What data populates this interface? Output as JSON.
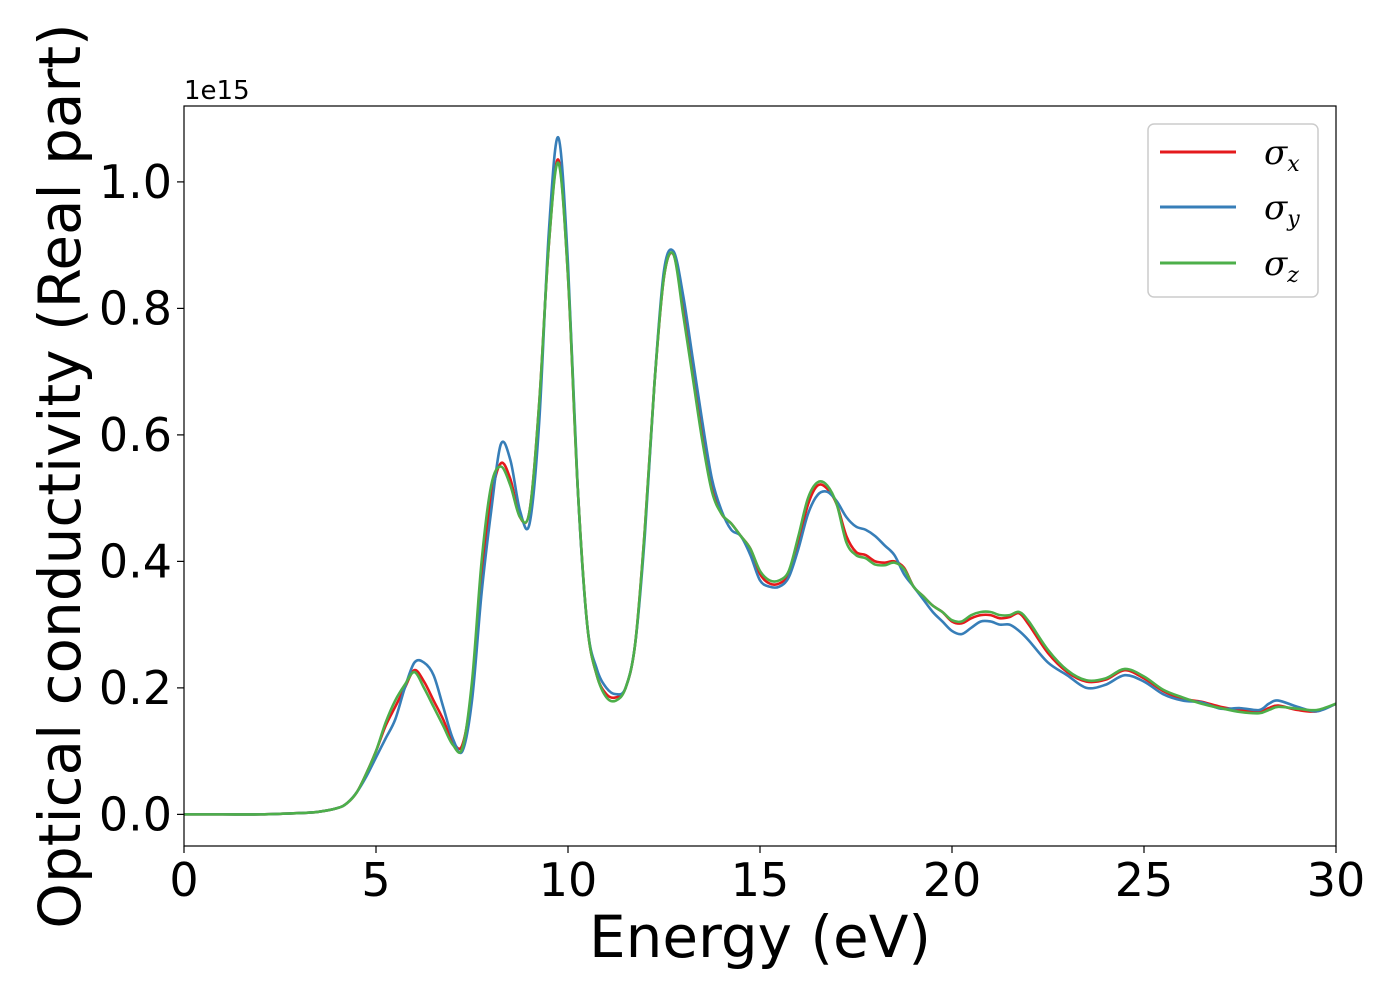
{
  "chart_data": {
    "type": "line",
    "title": "",
    "xlabel": "Energy (eV)",
    "ylabel": "Optical conductivity (Real part)",
    "y_offset_text": "1e15",
    "xlim": [
      0,
      30
    ],
    "ylim": [
      -0.05,
      1.12
    ],
    "x_ticks": [
      0,
      5,
      10,
      15,
      20,
      25,
      30
    ],
    "x_tick_labels": [
      "0",
      "5",
      "10",
      "15",
      "20",
      "25",
      "30"
    ],
    "y_ticks": [
      0.0,
      0.2,
      0.4,
      0.6,
      0.8,
      1.0
    ],
    "y_tick_labels": [
      "0.0",
      "0.2",
      "0.4",
      "0.6",
      "0.8",
      "1.0"
    ],
    "grid": false,
    "legend_position": "upper right",
    "x": [
      0,
      1,
      2,
      3,
      3.5,
      4,
      4.25,
      4.5,
      4.75,
      5,
      5.25,
      5.5,
      5.75,
      6,
      6.25,
      6.5,
      6.75,
      7,
      7.25,
      7.5,
      7.75,
      8,
      8.25,
      8.5,
      8.75,
      9,
      9.25,
      9.5,
      9.75,
      10,
      10.25,
      10.5,
      10.75,
      11,
      11.25,
      11.5,
      11.75,
      12,
      12.25,
      12.5,
      12.75,
      13,
      13.25,
      13.5,
      13.75,
      14,
      14.25,
      14.5,
      14.75,
      15,
      15.25,
      15.5,
      15.75,
      16,
      16.25,
      16.5,
      16.75,
      17,
      17.25,
      17.5,
      17.75,
      18,
      18.25,
      18.5,
      18.75,
      19,
      19.25,
      19.5,
      19.75,
      20,
      20.25,
      20.5,
      20.75,
      21,
      21.25,
      21.5,
      21.75,
      22,
      22.5,
      23,
      23.5,
      24,
      24.5,
      25,
      25.5,
      26,
      26.5,
      27,
      27.5,
      28,
      28.25,
      28.5,
      29,
      29.5,
      30
    ],
    "series": [
      {
        "name": "σx",
        "color": "#e41a1c",
        "values": [
          0.0,
          0.0,
          0.0,
          0.002,
          0.004,
          0.01,
          0.018,
          0.035,
          0.065,
          0.1,
          0.14,
          0.17,
          0.2,
          0.228,
          0.21,
          0.18,
          0.15,
          0.115,
          0.11,
          0.2,
          0.38,
          0.5,
          0.555,
          0.53,
          0.47,
          0.48,
          0.65,
          0.9,
          1.035,
          0.85,
          0.52,
          0.3,
          0.22,
          0.19,
          0.185,
          0.2,
          0.27,
          0.45,
          0.68,
          0.85,
          0.885,
          0.8,
          0.7,
          0.6,
          0.52,
          0.475,
          0.46,
          0.44,
          0.42,
          0.38,
          0.365,
          0.365,
          0.38,
          0.43,
          0.49,
          0.52,
          0.515,
          0.49,
          0.44,
          0.415,
          0.41,
          0.4,
          0.398,
          0.4,
          0.39,
          0.36,
          0.345,
          0.33,
          0.32,
          0.305,
          0.302,
          0.31,
          0.315,
          0.315,
          0.31,
          0.312,
          0.318,
          0.3,
          0.255,
          0.225,
          0.21,
          0.213,
          0.228,
          0.215,
          0.195,
          0.183,
          0.178,
          0.17,
          0.165,
          0.162,
          0.168,
          0.172,
          0.165,
          0.163,
          0.175
        ]
      },
      {
        "name": "σy",
        "color": "#377eb8",
        "values": [
          0.0,
          0.0,
          0.0,
          0.002,
          0.004,
          0.01,
          0.018,
          0.035,
          0.06,
          0.09,
          0.12,
          0.15,
          0.2,
          0.24,
          0.24,
          0.22,
          0.17,
          0.12,
          0.1,
          0.18,
          0.35,
          0.48,
          0.585,
          0.56,
          0.48,
          0.46,
          0.62,
          0.92,
          1.07,
          0.87,
          0.52,
          0.3,
          0.23,
          0.2,
          0.19,
          0.2,
          0.27,
          0.44,
          0.68,
          0.86,
          0.89,
          0.82,
          0.72,
          0.62,
          0.53,
          0.48,
          0.45,
          0.44,
          0.41,
          0.37,
          0.36,
          0.36,
          0.375,
          0.42,
          0.475,
          0.505,
          0.51,
          0.495,
          0.47,
          0.455,
          0.45,
          0.44,
          0.425,
          0.41,
          0.38,
          0.36,
          0.34,
          0.32,
          0.305,
          0.29,
          0.285,
          0.295,
          0.305,
          0.305,
          0.3,
          0.3,
          0.29,
          0.275,
          0.24,
          0.22,
          0.2,
          0.205,
          0.22,
          0.21,
          0.19,
          0.18,
          0.177,
          0.167,
          0.168,
          0.165,
          0.175,
          0.18,
          0.17,
          0.163,
          0.175
        ]
      },
      {
        "name": "σz",
        "color": "#4daf4a",
        "values": [
          0.0,
          0.0,
          0.0,
          0.002,
          0.004,
          0.01,
          0.018,
          0.035,
          0.065,
          0.1,
          0.145,
          0.18,
          0.205,
          0.225,
          0.2,
          0.17,
          0.14,
          0.11,
          0.105,
          0.21,
          0.4,
          0.52,
          0.55,
          0.52,
          0.47,
          0.48,
          0.65,
          0.9,
          1.03,
          0.85,
          0.52,
          0.3,
          0.22,
          0.185,
          0.18,
          0.2,
          0.27,
          0.45,
          0.68,
          0.85,
          0.885,
          0.79,
          0.69,
          0.59,
          0.51,
          0.475,
          0.46,
          0.44,
          0.42,
          0.385,
          0.37,
          0.37,
          0.385,
          0.44,
          0.5,
          0.525,
          0.52,
          0.49,
          0.43,
          0.41,
          0.405,
          0.395,
          0.394,
          0.398,
          0.388,
          0.36,
          0.345,
          0.33,
          0.32,
          0.307,
          0.305,
          0.315,
          0.32,
          0.32,
          0.315,
          0.315,
          0.32,
          0.305,
          0.26,
          0.228,
          0.212,
          0.215,
          0.23,
          0.218,
          0.197,
          0.185,
          0.175,
          0.168,
          0.162,
          0.16,
          0.165,
          0.17,
          0.167,
          0.165,
          0.175
        ]
      }
    ]
  },
  "legend": {
    "items": [
      {
        "symbol": "σ",
        "sub": "x"
      },
      {
        "symbol": "σ",
        "sub": "y"
      },
      {
        "symbol": "σ",
        "sub": "z"
      }
    ]
  }
}
